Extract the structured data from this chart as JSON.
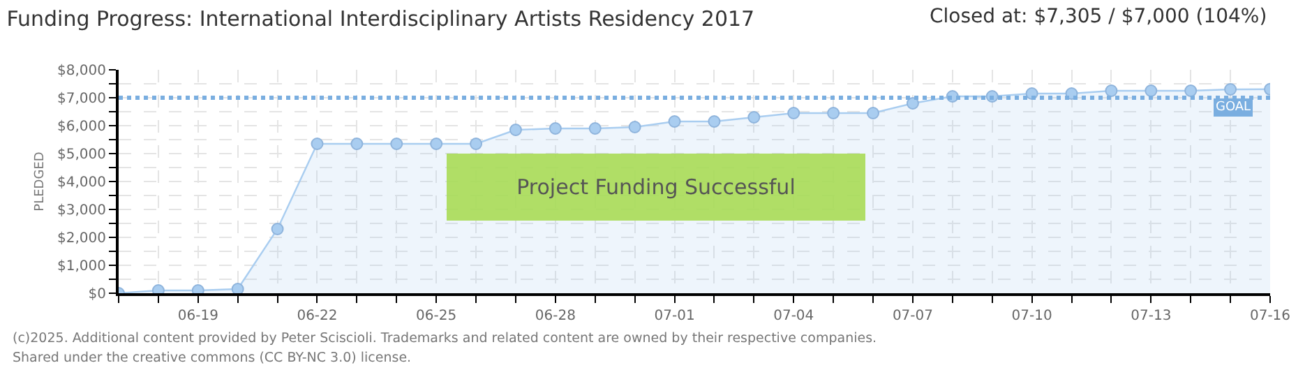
{
  "chart_data": {
    "type": "area",
    "title": "Funding Progress: International Interdisciplinary Artists Residency 2017",
    "subtitle": "Closed at: $7,305 / $7,000 (104%)",
    "ylabel": "PLEDGED",
    "x": [
      "2017-06-17",
      "2017-06-18",
      "2017-06-19",
      "2017-06-20",
      "2017-06-21",
      "2017-06-22",
      "2017-06-23",
      "2017-06-24",
      "2017-06-25",
      "2017-06-26",
      "2017-06-27",
      "2017-06-28",
      "2017-06-29",
      "2017-06-30",
      "2017-07-01",
      "2017-07-02",
      "2017-07-03",
      "2017-07-04",
      "2017-07-05",
      "2017-07-06",
      "2017-07-07",
      "2017-07-08",
      "2017-07-09",
      "2017-07-10",
      "2017-07-11",
      "2017-07-12",
      "2017-07-13",
      "2017-07-14",
      "2017-07-15",
      "2017-07-16"
    ],
    "series": [
      {
        "color": "#a9cdf0",
        "values": [
          0,
          100,
          100,
          150,
          2300,
          5350,
          5350,
          5350,
          5350,
          5350,
          5850,
          5900,
          5900,
          5950,
          6150,
          6150,
          6300,
          6450,
          6450,
          6450,
          6800,
          7050,
          7050,
          7150,
          7150,
          7250,
          7250,
          7250,
          7300,
          7305
        ]
      }
    ],
    "xlim": [
      "2017-06-17",
      "2017-07-16"
    ],
    "xticks": [
      {
        "value": "2017-06-17",
        "label": null
      },
      {
        "value": "2017-06-18",
        "label": null
      },
      {
        "value": "2017-06-19",
        "label": "06-19"
      },
      {
        "value": "2017-06-20",
        "label": null
      },
      {
        "value": "2017-06-21",
        "label": null
      },
      {
        "value": "2017-06-22",
        "label": "06-22"
      },
      {
        "value": "2017-06-23",
        "label": null
      },
      {
        "value": "2017-06-24",
        "label": null
      },
      {
        "value": "2017-06-25",
        "label": "06-25"
      },
      {
        "value": "2017-06-26",
        "label": null
      },
      {
        "value": "2017-06-27",
        "label": null
      },
      {
        "value": "2017-06-28",
        "label": "06-28"
      },
      {
        "value": "2017-06-29",
        "label": null
      },
      {
        "value": "2017-06-30",
        "label": null
      },
      {
        "value": "2017-07-01",
        "label": "07-01"
      },
      {
        "value": "2017-07-02",
        "label": null
      },
      {
        "value": "2017-07-03",
        "label": null
      },
      {
        "value": "2017-07-04",
        "label": "07-04"
      },
      {
        "value": "2017-07-05",
        "label": null
      },
      {
        "value": "2017-07-06",
        "label": null
      },
      {
        "value": "2017-07-07",
        "label": "07-07"
      },
      {
        "value": "2017-07-08",
        "label": null
      },
      {
        "value": "2017-07-09",
        "label": null
      },
      {
        "value": "2017-07-10",
        "label": "07-10"
      },
      {
        "value": "2017-07-11",
        "label": null
      },
      {
        "value": "2017-07-12",
        "label": null
      },
      {
        "value": "2017-07-13",
        "label": "07-13"
      },
      {
        "value": "2017-07-14",
        "label": null
      },
      {
        "value": "2017-07-15",
        "label": null
      },
      {
        "value": "2017-07-16",
        "label": "07-16"
      }
    ],
    "ylim": [
      0,
      8000
    ],
    "yticks": [
      {
        "value": 0,
        "label": "$0"
      },
      {
        "value": 500,
        "label": null
      },
      {
        "value": 1000,
        "label": "$1,000"
      },
      {
        "value": 1500,
        "label": null
      },
      {
        "value": 2000,
        "label": "$2,000"
      },
      {
        "value": 2500,
        "label": null
      },
      {
        "value": 3000,
        "label": "$3,000"
      },
      {
        "value": 3500,
        "label": null
      },
      {
        "value": 4000,
        "label": "$4,000"
      },
      {
        "value": 4500,
        "label": null
      },
      {
        "value": 5000,
        "label": "$5,000"
      },
      {
        "value": 5500,
        "label": null
      },
      {
        "value": 6000,
        "label": "$6,000"
      },
      {
        "value": 6500,
        "label": null
      },
      {
        "value": 7000,
        "label": "$7,000"
      },
      {
        "value": 7500,
        "label": null
      },
      {
        "value": 8000,
        "label": "$8,000"
      }
    ],
    "ref_lines": [
      {
        "axis": "y",
        "value": 7000,
        "label": "GOAL",
        "color": "#7aaee0",
        "line_style": "dotted"
      }
    ],
    "annotations": [
      "Project Funding Successful",
      "(c)2025. Additional content provided by Peter Sciscioli. Trademarks and related content are owned by their respective companies.",
      "Shared under the creative commons (CC BY-NC 3.0) license."
    ],
    "grid": true,
    "marker": "circle",
    "line_style": "solid"
  }
}
